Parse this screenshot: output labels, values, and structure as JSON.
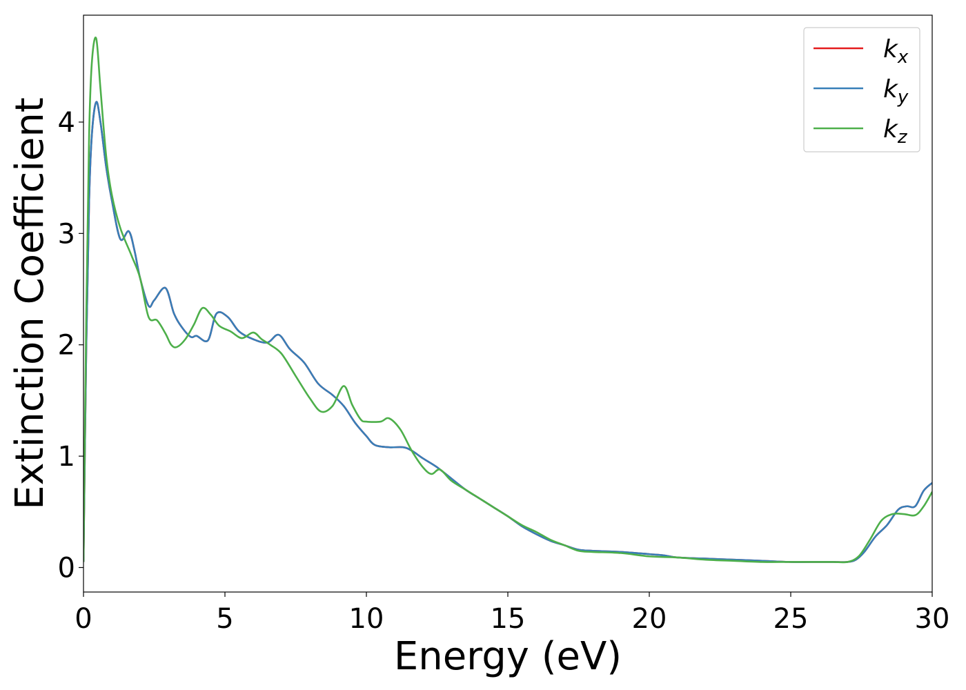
{
  "chart_data": {
    "type": "line",
    "xlabel": "Energy (eV)",
    "ylabel": "Extinction Coefficient",
    "xlim": [
      0,
      30
    ],
    "ylim": [
      -0.22,
      4.96
    ],
    "xticks": [
      "0",
      "5",
      "10",
      "15",
      "20",
      "25",
      "30"
    ],
    "yticks": [
      "0",
      "1",
      "2",
      "3",
      "4"
    ],
    "grid": false,
    "legend_position": "top-right",
    "series": [
      {
        "name": "k_x",
        "legend_base": "k",
        "legend_sub": "x",
        "color": "#e41a1c",
        "x": [
          0,
          0.1,
          0.2,
          0.3,
          0.45,
          0.6,
          0.8,
          1.0,
          1.3,
          1.6,
          1.8,
          2.0,
          2.3,
          2.5,
          2.9,
          3.2,
          3.5,
          3.8,
          4.0,
          4.4,
          4.7,
          5.1,
          5.5,
          6.0,
          6.5,
          6.9,
          7.3,
          7.8,
          8.3,
          8.8,
          9.2,
          9.6,
          10.0,
          10.3,
          10.8,
          11.3,
          11.6,
          12.0,
          12.5,
          13.0,
          13.5,
          14.0,
          14.5,
          15.0,
          15.5,
          16.0,
          16.5,
          17.0,
          17.5,
          18.0,
          19.0,
          20.0,
          20.5,
          21.0,
          22.0,
          23.0,
          24.0,
          25.0,
          26.0,
          26.5,
          27.0,
          27.3,
          27.6,
          28.0,
          28.4,
          28.8,
          29.1,
          29.4,
          29.7,
          30.0
        ],
        "y": [
          0.05,
          2.0,
          3.3,
          3.9,
          4.18,
          4.0,
          3.6,
          3.3,
          2.95,
          3.02,
          2.85,
          2.6,
          2.35,
          2.4,
          2.51,
          2.28,
          2.15,
          2.07,
          2.08,
          2.04,
          2.28,
          2.25,
          2.12,
          2.05,
          2.02,
          2.09,
          1.96,
          1.84,
          1.65,
          1.55,
          1.45,
          1.3,
          1.18,
          1.1,
          1.08,
          1.08,
          1.05,
          0.98,
          0.9,
          0.8,
          0.7,
          0.62,
          0.54,
          0.46,
          0.37,
          0.3,
          0.24,
          0.2,
          0.16,
          0.15,
          0.14,
          0.12,
          0.11,
          0.09,
          0.08,
          0.07,
          0.06,
          0.05,
          0.05,
          0.05,
          0.05,
          0.07,
          0.14,
          0.28,
          0.38,
          0.52,
          0.55,
          0.55,
          0.69,
          0.76
        ]
      },
      {
        "name": "k_y",
        "legend_base": "k",
        "legend_sub": "y",
        "color": "#377eb8",
        "x": [
          0,
          0.1,
          0.2,
          0.3,
          0.45,
          0.6,
          0.8,
          1.0,
          1.3,
          1.6,
          1.8,
          2.0,
          2.3,
          2.5,
          2.9,
          3.2,
          3.5,
          3.8,
          4.0,
          4.4,
          4.7,
          5.1,
          5.5,
          6.0,
          6.5,
          6.9,
          7.3,
          7.8,
          8.3,
          8.8,
          9.2,
          9.6,
          10.0,
          10.3,
          10.8,
          11.3,
          11.6,
          12.0,
          12.5,
          13.0,
          13.5,
          14.0,
          14.5,
          15.0,
          15.5,
          16.0,
          16.5,
          17.0,
          17.5,
          18.0,
          19.0,
          20.0,
          20.5,
          21.0,
          22.0,
          23.0,
          24.0,
          25.0,
          26.0,
          26.5,
          27.0,
          27.3,
          27.6,
          28.0,
          28.4,
          28.8,
          29.1,
          29.4,
          29.7,
          30.0
        ],
        "y": [
          0.05,
          2.0,
          3.3,
          3.9,
          4.18,
          4.0,
          3.6,
          3.3,
          2.95,
          3.02,
          2.85,
          2.6,
          2.35,
          2.4,
          2.51,
          2.28,
          2.15,
          2.07,
          2.08,
          2.04,
          2.28,
          2.25,
          2.12,
          2.05,
          2.02,
          2.09,
          1.96,
          1.84,
          1.65,
          1.55,
          1.45,
          1.3,
          1.18,
          1.1,
          1.08,
          1.08,
          1.05,
          0.98,
          0.9,
          0.8,
          0.7,
          0.62,
          0.54,
          0.46,
          0.37,
          0.3,
          0.24,
          0.2,
          0.16,
          0.15,
          0.14,
          0.12,
          0.11,
          0.09,
          0.08,
          0.07,
          0.06,
          0.05,
          0.05,
          0.05,
          0.05,
          0.07,
          0.14,
          0.28,
          0.38,
          0.52,
          0.55,
          0.55,
          0.69,
          0.76
        ]
      },
      {
        "name": "k_z",
        "legend_base": "k",
        "legend_sub": "z",
        "color": "#4daf4a",
        "x": [
          0,
          0.1,
          0.2,
          0.3,
          0.45,
          0.6,
          0.8,
          1.0,
          1.3,
          1.7,
          2.0,
          2.3,
          2.6,
          2.9,
          3.1,
          3.3,
          3.6,
          3.9,
          4.2,
          4.5,
          4.8,
          5.2,
          5.6,
          6.0,
          6.3,
          6.6,
          7.0,
          7.5,
          8.0,
          8.4,
          8.8,
          9.2,
          9.5,
          9.8,
          10.0,
          10.5,
          10.8,
          11.2,
          11.6,
          12.0,
          12.3,
          12.6,
          13.0,
          13.5,
          14.0,
          14.5,
          15.0,
          15.5,
          16.0,
          16.5,
          17.0,
          17.5,
          18.0,
          19.0,
          20.0,
          21.0,
          22.0,
          23.0,
          24.0,
          25.0,
          26.0,
          26.5,
          27.0,
          27.4,
          27.8,
          28.2,
          28.6,
          29.0,
          29.4,
          29.7,
          30.0
        ],
        "y": [
          0.05,
          2.3,
          3.9,
          4.55,
          4.75,
          4.3,
          3.7,
          3.35,
          3.05,
          2.8,
          2.6,
          2.25,
          2.22,
          2.1,
          2.0,
          1.98,
          2.05,
          2.18,
          2.33,
          2.27,
          2.17,
          2.12,
          2.06,
          2.11,
          2.05,
          2.0,
          1.92,
          1.72,
          1.52,
          1.4,
          1.45,
          1.63,
          1.46,
          1.33,
          1.31,
          1.31,
          1.34,
          1.24,
          1.05,
          0.9,
          0.84,
          0.88,
          0.78,
          0.7,
          0.62,
          0.54,
          0.46,
          0.38,
          0.32,
          0.25,
          0.2,
          0.15,
          0.14,
          0.13,
          0.1,
          0.09,
          0.07,
          0.06,
          0.05,
          0.05,
          0.05,
          0.05,
          0.05,
          0.1,
          0.25,
          0.42,
          0.48,
          0.48,
          0.47,
          0.55,
          0.68
        ]
      }
    ]
  }
}
